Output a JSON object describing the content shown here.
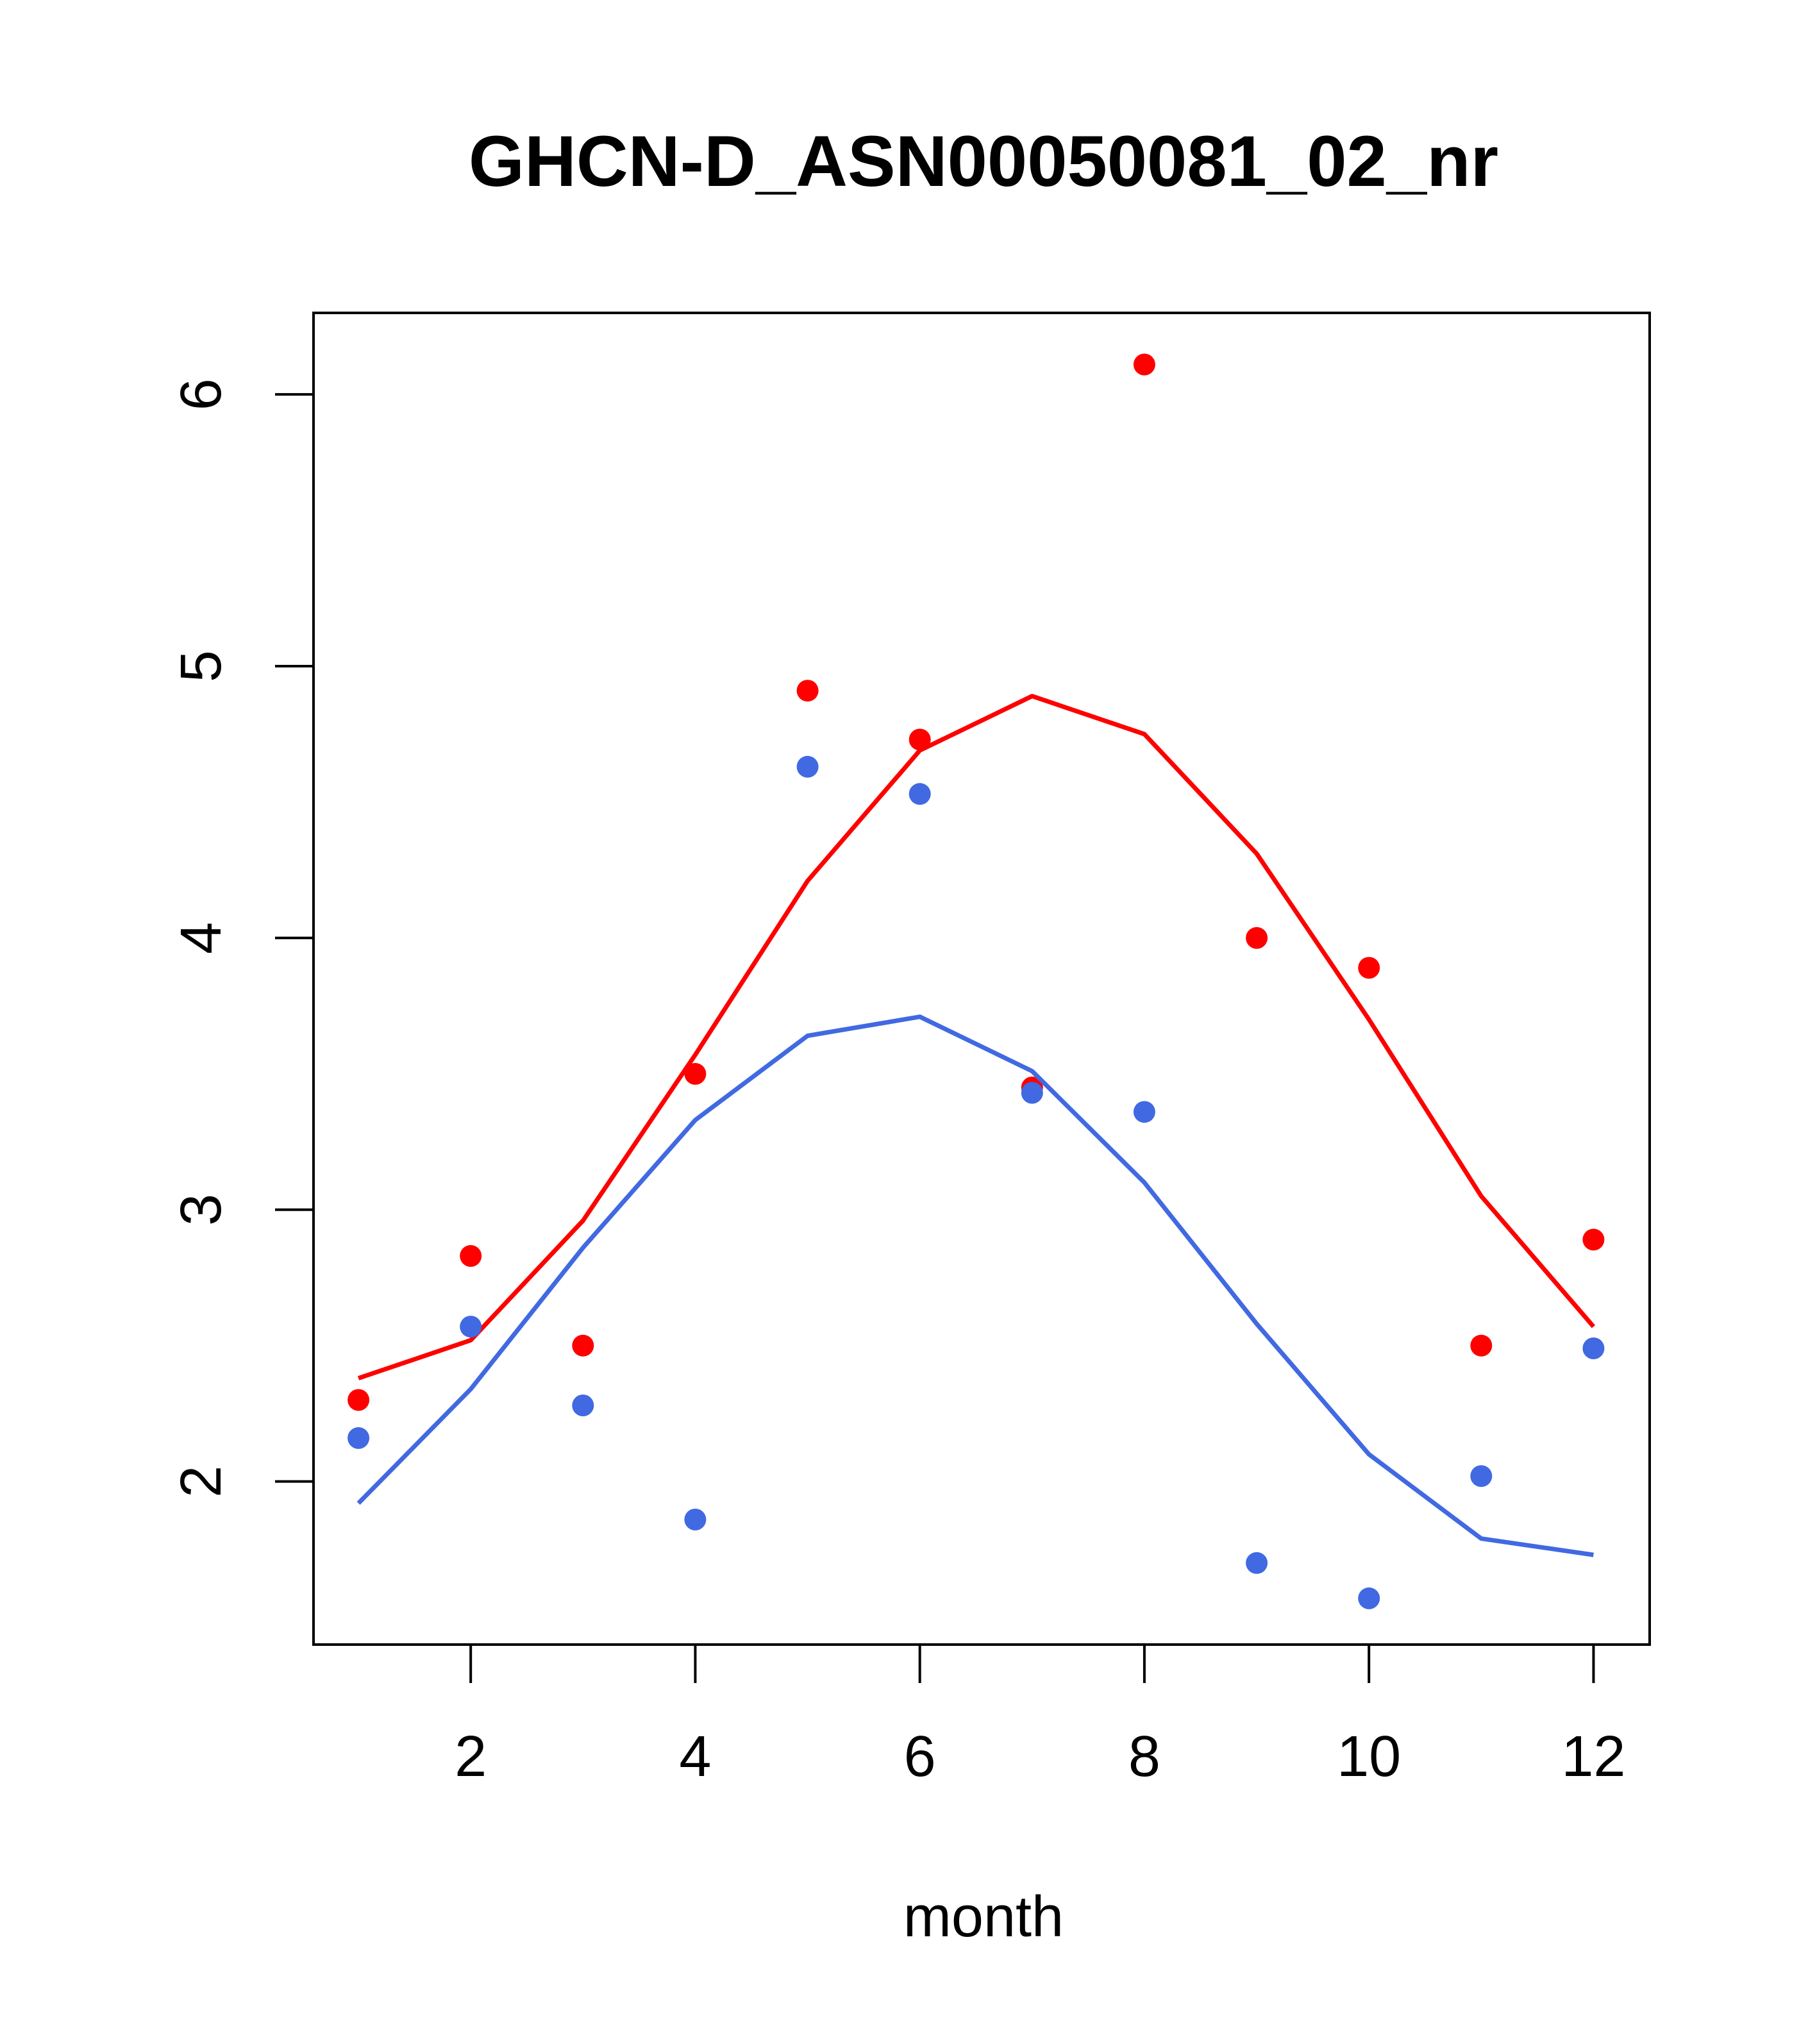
{
  "chart_data": {
    "type": "scatter",
    "title": "GHCN-D_ASN00050081_02_nr",
    "xlabel": "month",
    "ylabel": "",
    "xlim": [
      0.6,
      12.5
    ],
    "ylim": [
      1.4,
      6.3
    ],
    "x_ticks": [
      2,
      4,
      6,
      8,
      10,
      12
    ],
    "y_ticks": [
      2,
      3,
      4,
      5,
      6
    ],
    "grid": false,
    "series": [
      {
        "color": "#ff0000",
        "points_x": [
          1,
          2,
          3,
          4,
          5,
          6,
          7,
          8,
          9,
          10,
          11,
          12
        ],
        "points_y": [
          2.3,
          2.83,
          2.5,
          3.5,
          4.91,
          4.73,
          3.45,
          6.11,
          4.0,
          3.89,
          2.5,
          2.89
        ],
        "line_x": [
          1,
          2,
          3,
          4,
          5,
          6,
          7,
          8,
          9,
          10,
          11,
          12
        ],
        "line_y": [
          2.38,
          2.52,
          2.96,
          3.57,
          4.21,
          4.69,
          4.89,
          4.75,
          4.31,
          3.7,
          3.05,
          2.57
        ]
      },
      {
        "color": "#4169e1",
        "points_x": [
          1,
          2,
          3,
          4,
          5,
          6,
          7,
          8,
          9,
          10,
          11,
          12
        ],
        "points_y": [
          2.16,
          2.57,
          2.28,
          1.86,
          4.63,
          4.53,
          3.43,
          3.36,
          1.7,
          1.57,
          2.02,
          2.49
        ],
        "line_x": [
          1,
          2,
          3,
          4,
          5,
          6,
          7,
          8,
          9,
          10,
          11,
          12
        ],
        "line_y": [
          1.92,
          2.34,
          2.86,
          3.33,
          3.64,
          3.71,
          3.51,
          3.1,
          2.58,
          2.1,
          1.79,
          1.73
        ]
      }
    ]
  }
}
